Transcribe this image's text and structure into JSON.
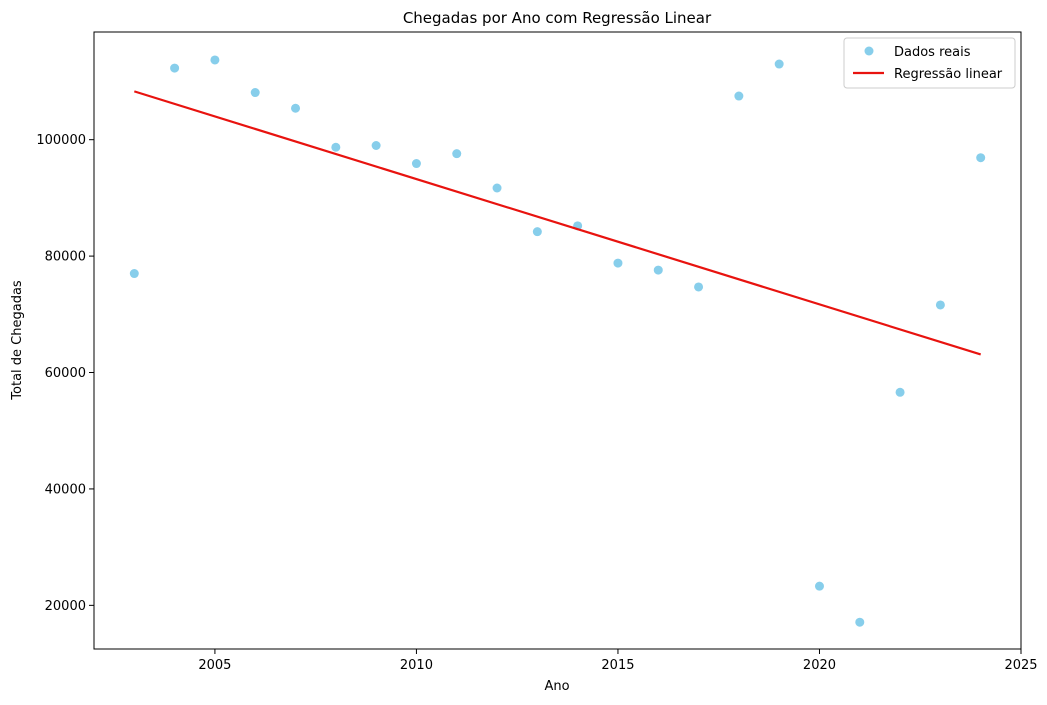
{
  "chart_data": {
    "type": "scatter",
    "title": "Chegadas por Ano com Regressão Linear",
    "xlabel": "Ano",
    "ylabel": "Total de Chegadas",
    "xlim": [
      2002,
      2025
    ],
    "ylim": [
      12500,
      118500
    ],
    "xticks": [
      2005,
      2010,
      2015,
      2020,
      2025
    ],
    "yticks": [
      20000,
      40000,
      60000,
      80000,
      100000
    ],
    "grid": false,
    "legend_position": "top-right",
    "series": [
      {
        "name": "Dados reais",
        "kind": "scatter",
        "color": "#87CEEB",
        "x": [
          2003,
          2004,
          2005,
          2006,
          2007,
          2008,
          2009,
          2010,
          2011,
          2012,
          2013,
          2014,
          2015,
          2016,
          2017,
          2018,
          2019,
          2020,
          2021,
          2022,
          2023,
          2024
        ],
        "y": [
          77000,
          112300,
          113700,
          108100,
          105400,
          98700,
          99000,
          95900,
          97600,
          91700,
          84200,
          85200,
          78800,
          77600,
          74700,
          107500,
          113000,
          23300,
          17100,
          56600,
          71600,
          96900
        ]
      },
      {
        "name": "Regressão linear",
        "kind": "line",
        "color": "#E8130F",
        "x": [
          2003,
          2024
        ],
        "y": [
          108300,
          63100
        ]
      }
    ]
  }
}
